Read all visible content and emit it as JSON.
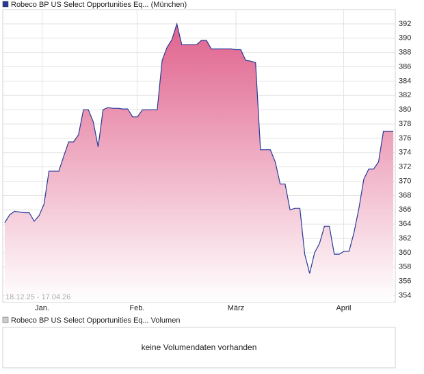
{
  "chart_data": {
    "type": "area",
    "subtitle": "18.12.25 - 17.04.26",
    "series": [
      {
        "name": "Robeco BP US Select Opportunities Eq... (München)",
        "color": "#26399a",
        "values": [
          364.2,
          365.3,
          365.8,
          365.7,
          365.6,
          365.6,
          364.4,
          365.2,
          366.8,
          371.4,
          371.4,
          371.4,
          373.5,
          375.5,
          375.5,
          376.5,
          380.0,
          380.0,
          378.3,
          374.8,
          380.0,
          380.3,
          380.2,
          380.2,
          380.1,
          380.1,
          379.0,
          379.0,
          380.0,
          380.0,
          380.0,
          380.0,
          386.9,
          388.7,
          389.8,
          392.0,
          389.1,
          389.1,
          389.1,
          389.1,
          389.7,
          389.7,
          388.5,
          388.5,
          388.5,
          388.5,
          388.5,
          388.4,
          388.4,
          386.9,
          386.8,
          386.6,
          374.4,
          374.4,
          374.4,
          372.7,
          369.6,
          369.6,
          366.0,
          366.2,
          366.2,
          359.8,
          357.1,
          360.0,
          361.3,
          363.7,
          363.7,
          359.8,
          359.8,
          360.2,
          360.2,
          362.8,
          366.2,
          370.3,
          371.7,
          371.7,
          372.7,
          377.0,
          377.0,
          377.0
        ]
      }
    ],
    "fill_top": "#e0628c",
    "xlim": [
      -0.4,
      79.4
    ],
    "xticks": [
      {
        "value": 7.6,
        "label": "Jan."
      },
      {
        "value": 26.9,
        "label": "Feb."
      },
      {
        "value": 47.0,
        "label": "März"
      },
      {
        "value": 68.9,
        "label": "April"
      }
    ],
    "ylim": [
      353.1,
      394
    ],
    "yticks": [
      354,
      356,
      358,
      360,
      362,
      364,
      366,
      368,
      370,
      372,
      374,
      376,
      378,
      380,
      382,
      384,
      386,
      388,
      390,
      392
    ],
    "grid": true
  },
  "volume_panel": {
    "legend": "Robeco BP US Select Opportunities Eq... Volumen",
    "message": "keine Volumendaten vorhanden"
  }
}
